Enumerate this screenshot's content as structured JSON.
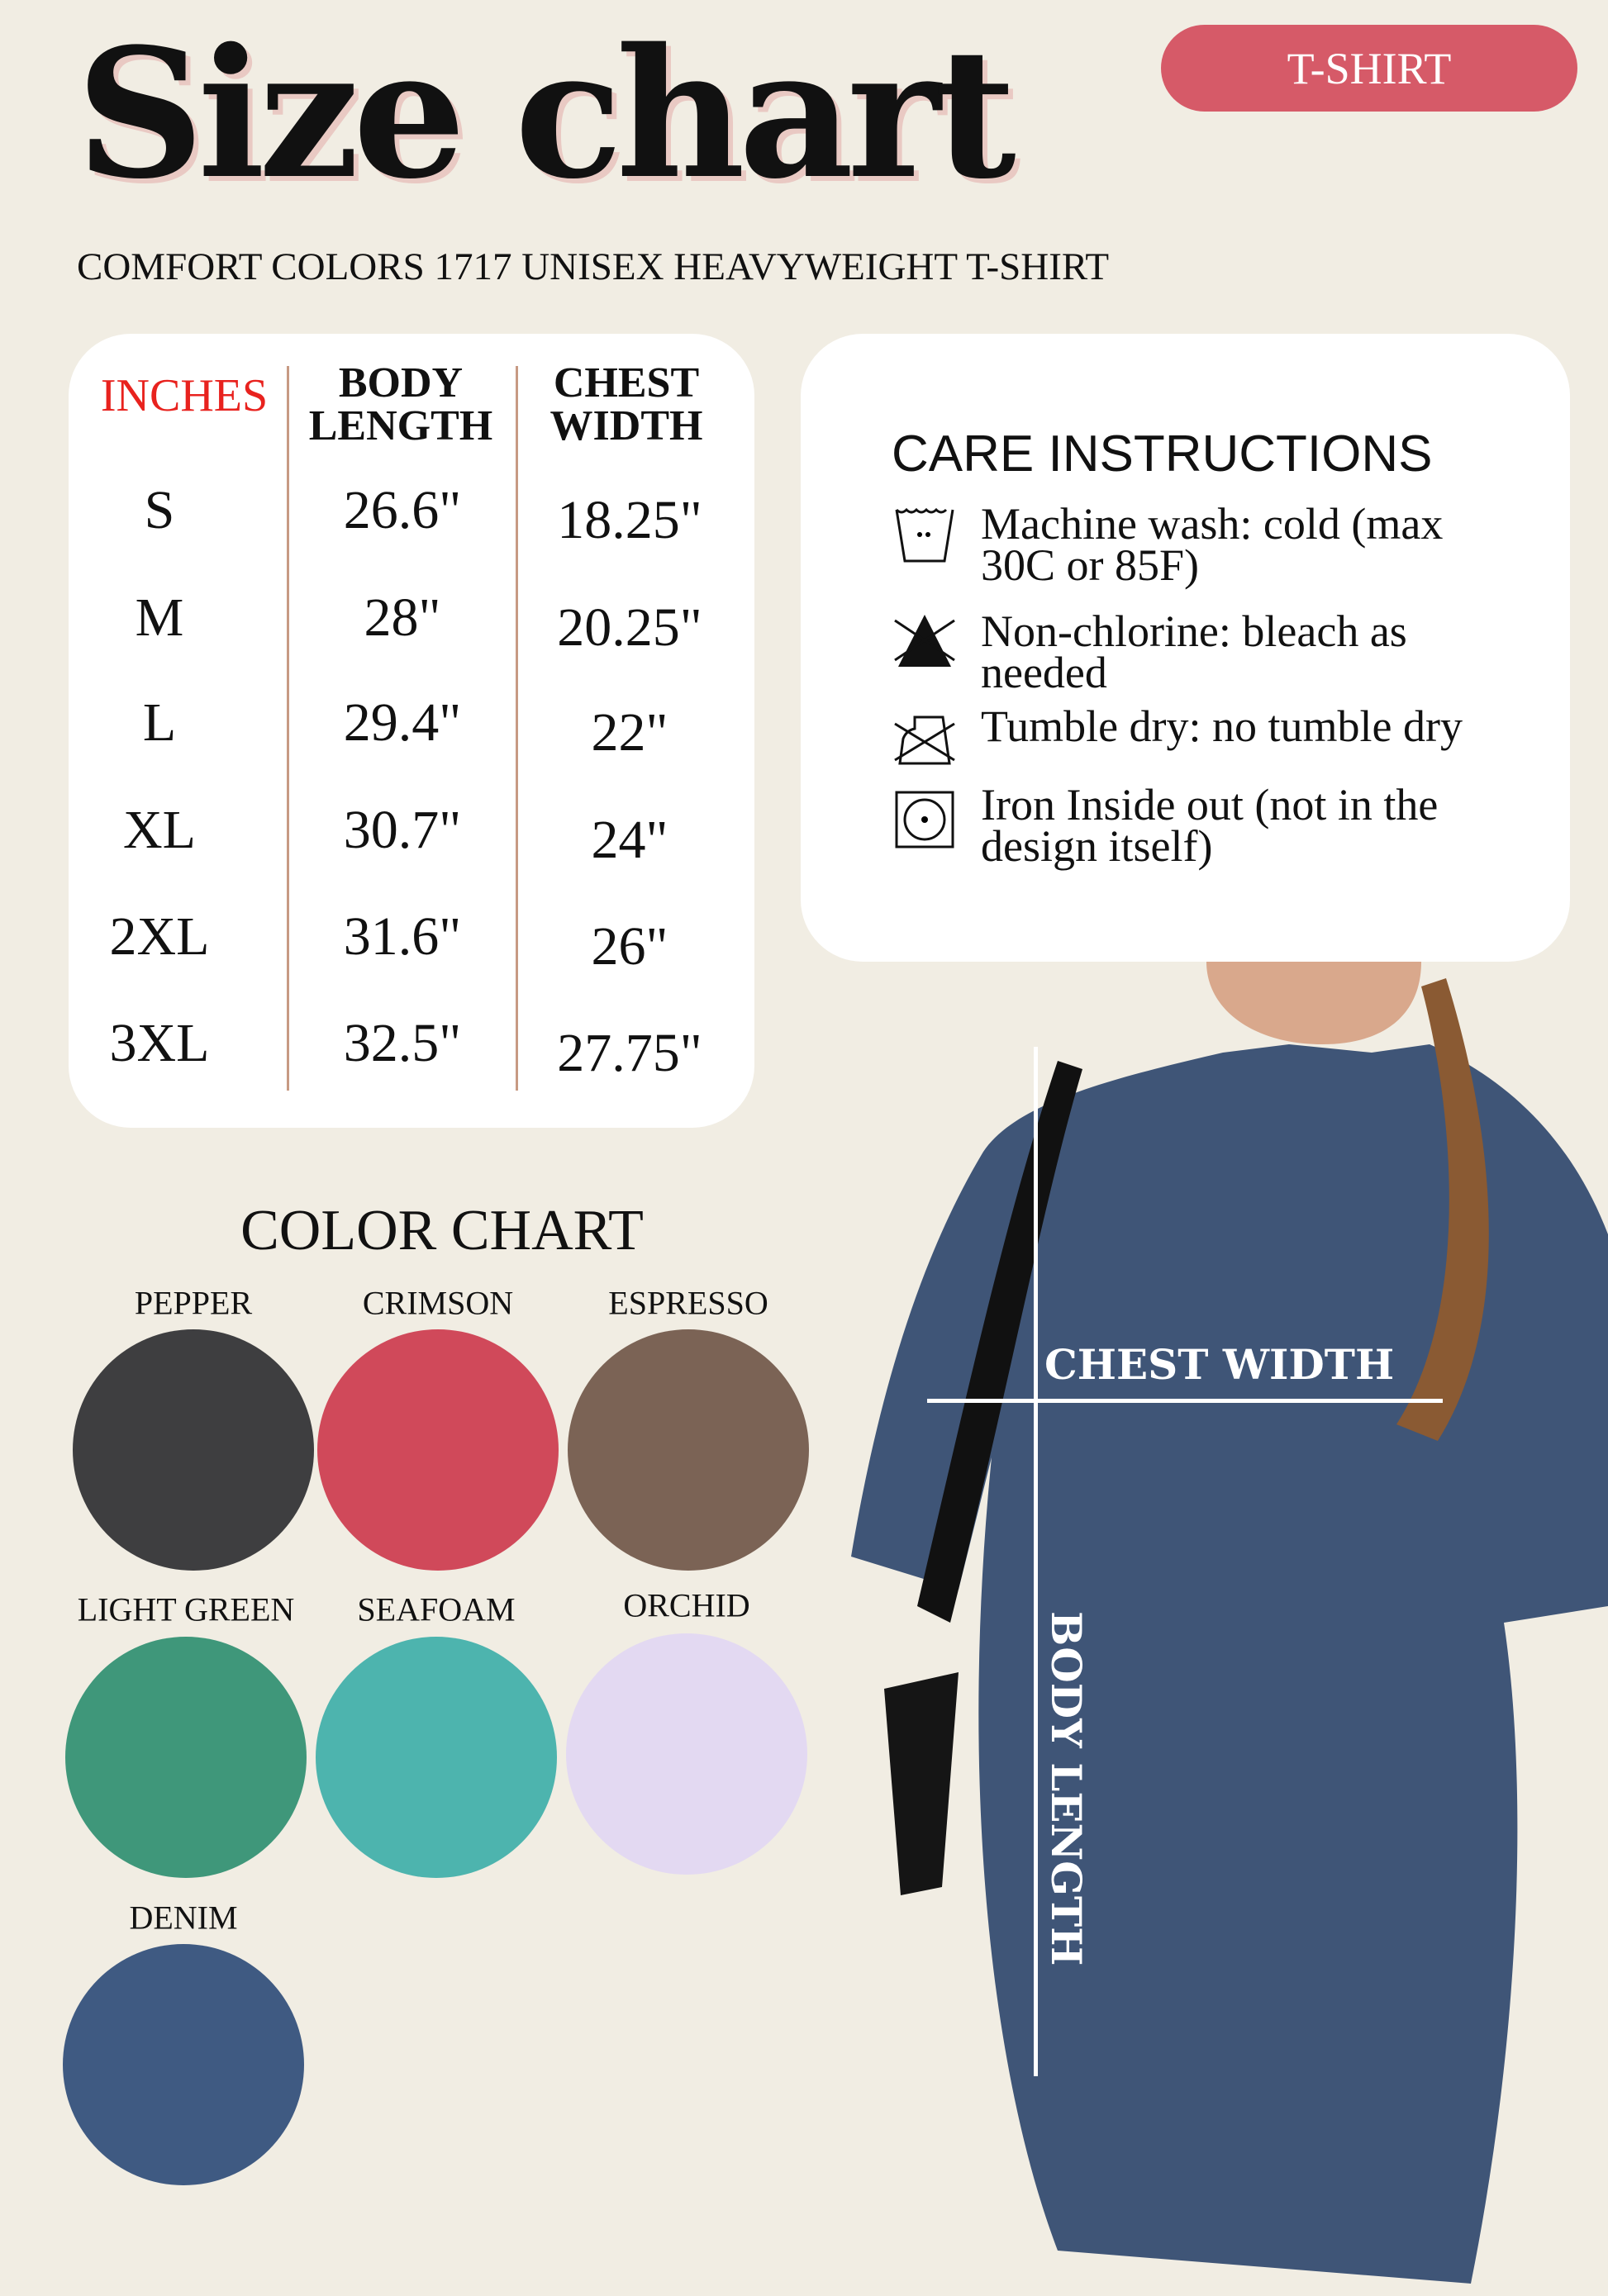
{
  "header": {
    "title": "Size chart",
    "badge": "T-SHIRT",
    "subtitle": "COMFORT COLORS 1717 UNISEX HEAVYWEIGHT T-SHIRT"
  },
  "size_table": {
    "unit_label": "INCHES",
    "unit_color": "#e8221e",
    "columns": [
      {
        "line1": "BODY",
        "line2": "LENGTH"
      },
      {
        "line1": "CHEST",
        "line2": "WIDTH"
      }
    ],
    "rows": [
      {
        "size": "S",
        "body_length": "26.6\"",
        "chest_width": "18.25\""
      },
      {
        "size": "M",
        "body_length": "28\"",
        "chest_width": "20.25\""
      },
      {
        "size": "L",
        "body_length": "29.4\"",
        "chest_width": "22\""
      },
      {
        "size": "XL",
        "body_length": "30.7\"",
        "chest_width": "24\""
      },
      {
        "size": "2XL",
        "body_length": "31.6\"",
        "chest_width": "26\""
      },
      {
        "size": "3XL",
        "body_length": "32.5\"",
        "chest_width": "27.75\""
      }
    ]
  },
  "care": {
    "title": "CARE INSTRUCTIONS",
    "items": [
      {
        "icon": "wash-cold-icon",
        "text": "Machine wash: cold (max 30C or 85F)"
      },
      {
        "icon": "non-chlorine-bleach-icon",
        "text": "Non-chlorine: bleach as needed"
      },
      {
        "icon": "no-tumble-dry-icon",
        "text": "Tumble dry: no tumble dry"
      },
      {
        "icon": "iron-icon",
        "text": "Iron Inside out (not in the design itself)"
      }
    ]
  },
  "color_chart": {
    "title": "COLOR CHART",
    "colors": [
      {
        "name": "PEPPER",
        "hex": "#3e3e40"
      },
      {
        "name": "CRIMSON",
        "hex": "#d0495a"
      },
      {
        "name": "ESPRESSO",
        "hex": "#7b6355"
      },
      {
        "name": "LIGHT GREEN",
        "hex": "#3f977a"
      },
      {
        "name": "SEAFOAM",
        "hex": "#4db4ae"
      },
      {
        "name": "ORCHID",
        "hex": "#e3d9f2"
      },
      {
        "name": "DENIM",
        "hex": "#3f5a82"
      }
    ]
  },
  "photo": {
    "chest_label": "CHEST WIDTH",
    "body_label": "BODY LENGTH",
    "shirt_color": "#3f5577"
  }
}
